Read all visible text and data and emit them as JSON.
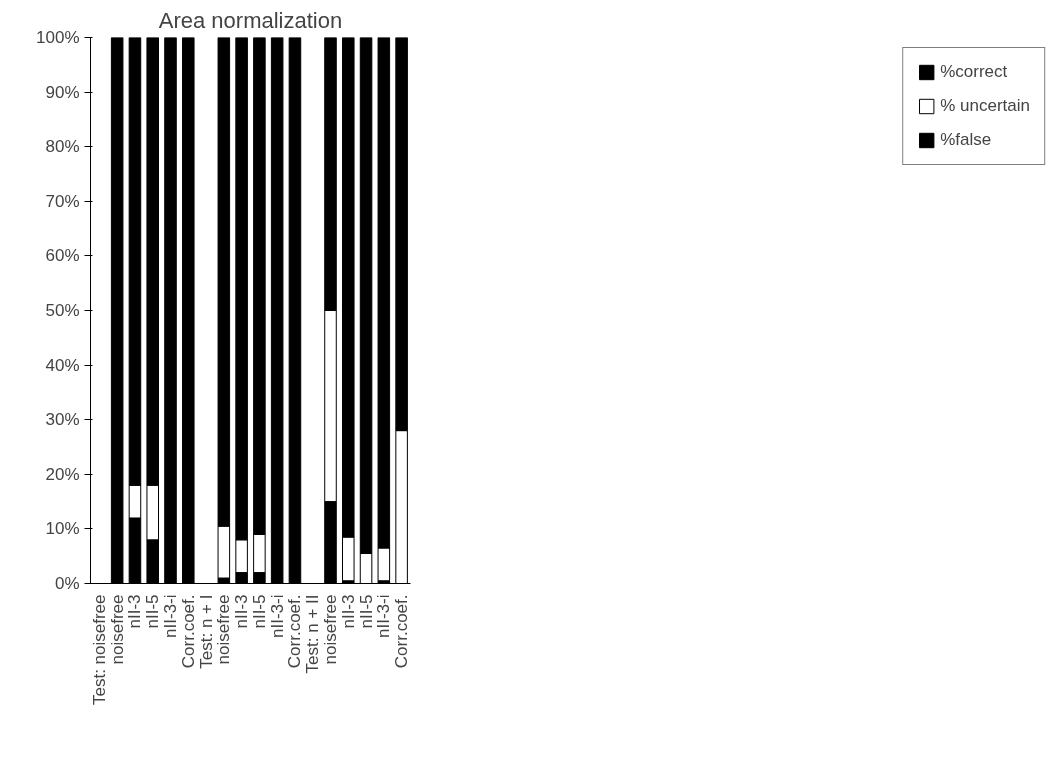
{
  "chart_data": {
    "type": "bar",
    "title": "Area normalization",
    "stacked": true,
    "legend": "right",
    "grid": false,
    "categories": [
      "Test: noisefree",
      "noisefree",
      "nII-3",
      "nII-5",
      "nII-3-i",
      "Corr.coef.",
      "Test: n + I",
      "noisefree",
      "nII-3",
      "nII-5",
      "nII-3-i",
      "Corr.coef.",
      "Test: n + II",
      "noisefree",
      "nII-3",
      "nII-5",
      "nII-3-i",
      "Corr.coef."
    ],
    "series": [
      {
        "name": "%false",
        "color": "#000000",
        "values": [
          null,
          0,
          12,
          8,
          0,
          0,
          null,
          1,
          2,
          2,
          0,
          0,
          null,
          15,
          0.5,
          0,
          0.5,
          0
        ]
      },
      {
        "name": "% uncertain",
        "color": "#ffffff",
        "values": [
          null,
          0,
          6,
          10,
          0,
          0,
          null,
          9.5,
          6,
          7,
          0,
          0,
          null,
          35,
          8,
          5.5,
          6,
          28
        ]
      },
      {
        "name": "%correct",
        "color": "#000000",
        "values": [
          null,
          100,
          82,
          82,
          100,
          100,
          null,
          89.5,
          92,
          91,
          100,
          100,
          null,
          50,
          91.5,
          94.5,
          93.5,
          72
        ]
      }
    ],
    "ylim": [
      0,
      100
    ],
    "yticks": [
      {
        "value": 0,
        "label": "0%"
      },
      {
        "value": 10,
        "label": "10%"
      },
      {
        "value": 20,
        "label": "20%"
      },
      {
        "value": 30,
        "label": "30%"
      },
      {
        "value": 40,
        "label": "40%"
      },
      {
        "value": 50,
        "label": "50%"
      },
      {
        "value": 60,
        "label": "60%"
      },
      {
        "value": 70,
        "label": "70%"
      },
      {
        "value": 80,
        "label": "80%"
      },
      {
        "value": 90,
        "label": "90%"
      },
      {
        "value": 100,
        "label": "100%"
      }
    ]
  }
}
